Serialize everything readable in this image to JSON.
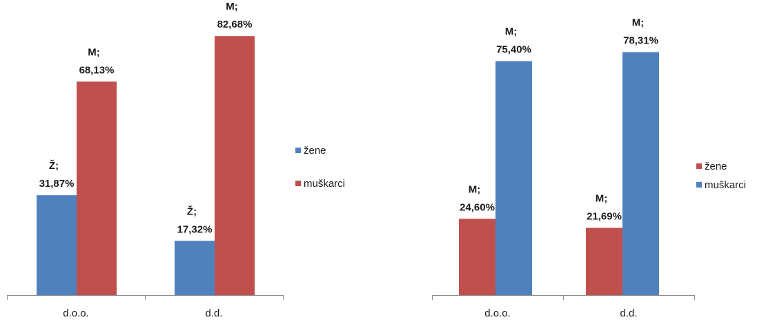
{
  "chart_data": [
    {
      "type": "bar",
      "categories": [
        "d.o.o.",
        "d.d."
      ],
      "series": [
        {
          "name": "žene",
          "color": "#4f81bd",
          "values": [
            31.87,
            17.32
          ],
          "labels": [
            [
              "Ž;",
              "31,87%"
            ],
            [
              "Ž;",
              "17,32%"
            ]
          ]
        },
        {
          "name": "muškarci",
          "color": "#c0504d",
          "values": [
            68.13,
            82.68
          ],
          "labels": [
            [
              "M;",
              "68,13%"
            ],
            [
              "M;",
              "82,68%"
            ]
          ]
        }
      ],
      "legend": "right",
      "grid": false,
      "ylim": [
        0,
        100
      ]
    },
    {
      "type": "bar",
      "categories": [
        "d.o.o.",
        "d.d."
      ],
      "series": [
        {
          "name": "žene",
          "color": "#c0504d",
          "values": [
            24.6,
            21.69
          ],
          "labels": [
            [
              "M;",
              "24,60%"
            ],
            [
              "M;",
              "21,69%"
            ]
          ]
        },
        {
          "name": "muškarci",
          "color": "#4f81bd",
          "values": [
            75.4,
            78.31
          ],
          "labels": [
            [
              "M;",
              "75,40%"
            ],
            [
              "M;",
              "78,31%"
            ]
          ]
        }
      ],
      "legend": "right",
      "grid": false,
      "ylim": [
        0,
        100
      ]
    }
  ]
}
